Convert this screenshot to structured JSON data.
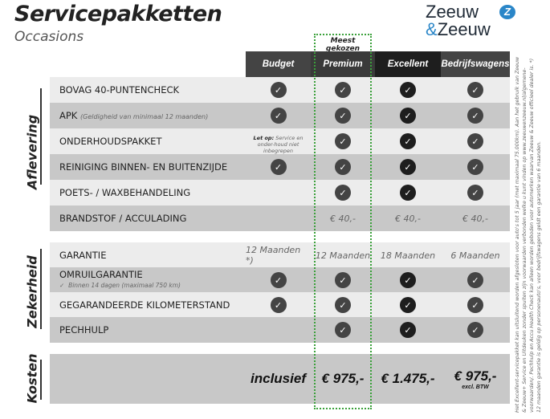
{
  "header": {
    "title": "Servicepakketten",
    "subtitle": "Occasions",
    "logo": "Zeeuw & Zeeuw",
    "most_chosen": "Meest gekozen"
  },
  "columns": [
    "Budget",
    "Premium",
    "Excellent",
    "Bedrijfswagens"
  ],
  "colors": {
    "highlight": "#3aa03a",
    "logo_blue": "#2a86c8"
  },
  "sections": [
    {
      "title": "Aflevering",
      "rows": [
        {
          "label": "BOVAG 40-PUNTENCHECK",
          "values": [
            "check",
            "check",
            "check",
            "check"
          ]
        },
        {
          "label": "APK",
          "note": "(Geldigheid van minimaal 12 maanden)",
          "values": [
            "check",
            "check",
            "check",
            "check"
          ]
        },
        {
          "label": "ONDERHOUDSPAKKET",
          "values": [
            "Let op: Service en onderhoud niet inbegrepen",
            "check",
            "check",
            "check"
          ],
          "budget_note_bold": "Let op:",
          "budget_note": "Service en onder-houd niet inbegrepen"
        },
        {
          "label": "REINIGING BINNEN- EN BUITENZIJDE",
          "values": [
            "check",
            "check",
            "check",
            "check"
          ]
        },
        {
          "label": "POETS- / WAXBEHANDELING",
          "values": [
            "",
            "check",
            "check",
            "check"
          ]
        },
        {
          "label": "BRANDSTOF / ACCULADING",
          "values": [
            "",
            "€ 40,-",
            "€ 40,-",
            "€ 40,-"
          ]
        }
      ]
    },
    {
      "title": "Zekerheid",
      "rows": [
        {
          "label": "GARANTIE",
          "values": [
            "12 Maanden *)",
            "12 Maanden",
            "18 Maanden",
            "6 Maanden"
          ]
        },
        {
          "label": "OMRUILGARANTIE",
          "sub": "Binnen 14 dagen (maximaal 750 km)",
          "values": [
            "check",
            "check",
            "check",
            "check"
          ]
        },
        {
          "label": "GEGARANDEERDE KILOMETERSTAND",
          "values": [
            "check",
            "check",
            "check",
            "check"
          ]
        },
        {
          "label": "PECHHULP",
          "values": [
            "",
            "check",
            "check",
            "check"
          ]
        }
      ]
    },
    {
      "title": "Kosten",
      "rows": [
        {
          "values": [
            "inclusief",
            "€ 975,-",
            "€ 1.475,-",
            "€ 975,-"
          ],
          "suffix": "excl. BTW"
        }
      ]
    }
  ],
  "footnote": "Het Excellent-servicepakket kan uitsluitend worden afgesloten voor auto's tot 5 jaar (met maximaal 75.000km). Aan het gebruik van Zeeuw & Zeeuw+ Service en Uitdeuken zonder spuiten zijn voorwaarden verbonden welke u kunt vinden op www.zeeuwenzeeuw.nl/algemene-voorwaarden/. Pechhulp en Accu Health Check kan alleen worden geboden voor automerken waarvan Zeeuw & Zeeuw officieel dealer is. *) 12 maanden garantie is geldig op personenauto's, voor bedrijfswagens geldt een garantie van 6 maanden."
}
